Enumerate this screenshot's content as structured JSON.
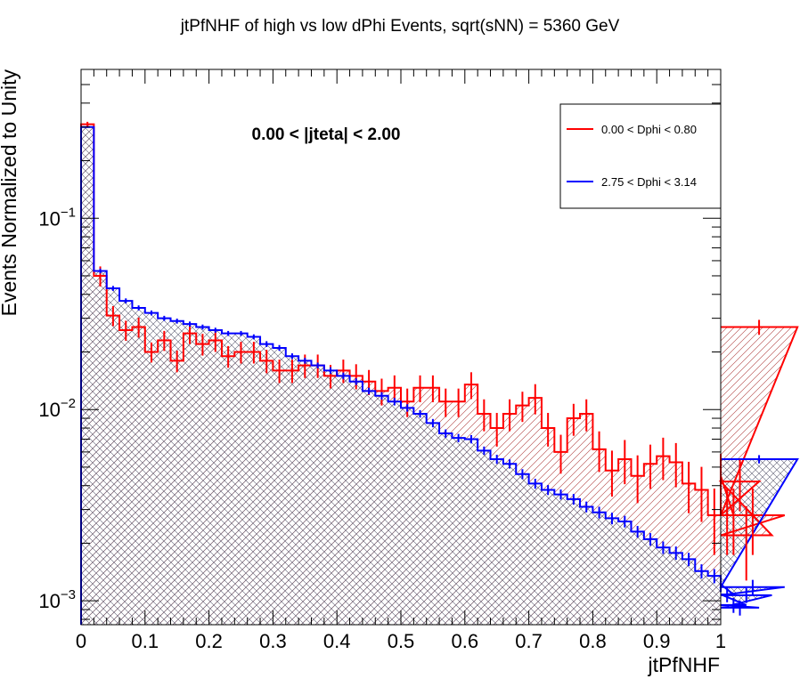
{
  "chart_data": {
    "type": "histogram",
    "title": "jtPfNHF of high vs low dPhi Events, sqrt(sNN) = 5360 GeV",
    "xlabel": "jtPfNHF",
    "ylabel": "Events Normalized to Unity",
    "annotation": "0.00 < |jteta| < 2.00",
    "xlim": [
      0,
      1
    ],
    "ylim": [
      0.00075,
      0.6
    ],
    "yscale": "log",
    "x_tick_labels": [
      "0",
      "0.1",
      "0.2",
      "0.3",
      "0.4",
      "0.5",
      "0.6",
      "0.7",
      "0.8",
      "0.9",
      "1"
    ],
    "y_tick_labels": [
      {
        "base": "10",
        "exp": "−1",
        "value": 0.1
      },
      {
        "base": "10",
        "exp": "−2",
        "value": 0.01
      },
      {
        "base": "10",
        "exp": "−3",
        "value": 0.001
      }
    ],
    "legend_position": "top-right",
    "bin_edges_start": 0,
    "bin_width": 0.02,
    "series": [
      {
        "name": "0.00 < Dphi < 0.80",
        "color": "#ff0000",
        "hatch": "diagonal",
        "values": [
          0.31,
          0.05,
          0.031,
          0.026,
          0.027,
          0.02,
          0.023,
          0.018,
          0.025,
          0.022,
          0.023,
          0.019,
          0.02,
          0.02,
          0.018,
          0.016,
          0.016,
          0.017,
          0.017,
          0.015,
          0.016,
          0.015,
          0.014,
          0.0125,
          0.013,
          0.011,
          0.013,
          0.013,
          0.011,
          0.011,
          0.0135,
          0.0095,
          0.008,
          0.0095,
          0.0105,
          0.0115,
          0.008,
          0.006,
          0.009,
          0.0095,
          0.0062,
          0.0048,
          0.0055,
          0.0045,
          0.0052,
          0.0057,
          0.0053,
          0.0041,
          0.0038,
          0.0028,
          0.0045,
          0.0028,
          0.0028,
          0.0042,
          0.0022,
          0.0028,
          0.027
        ],
        "errors_rel": [
          0.03,
          0.12,
          0.12,
          0.12,
          0.12,
          0.12,
          0.12,
          0.13,
          0.12,
          0.13,
          0.13,
          0.13,
          0.13,
          0.13,
          0.14,
          0.14,
          0.14,
          0.14,
          0.14,
          0.14,
          0.14,
          0.15,
          0.15,
          0.16,
          0.16,
          0.17,
          0.16,
          0.16,
          0.17,
          0.17,
          0.16,
          0.19,
          0.2,
          0.19,
          0.18,
          0.18,
          0.2,
          0.23,
          0.19,
          0.19,
          0.24,
          0.27,
          0.26,
          0.28,
          0.26,
          0.25,
          0.26,
          0.3,
          0.32,
          0.38,
          0.3,
          0.38,
          0.38,
          0.3,
          0.42,
          0.38,
          0.09
        ]
      },
      {
        "name": "2.75 < Dphi < 3.14",
        "color": "#0000ff",
        "hatch": "crosshatch",
        "values": [
          0.3,
          0.053,
          0.043,
          0.037,
          0.034,
          0.032,
          0.03,
          0.029,
          0.028,
          0.027,
          0.026,
          0.025,
          0.025,
          0.024,
          0.022,
          0.021,
          0.019,
          0.018,
          0.017,
          0.016,
          0.015,
          0.014,
          0.0125,
          0.0118,
          0.011,
          0.0102,
          0.0095,
          0.0085,
          0.0075,
          0.0071,
          0.007,
          0.0061,
          0.0055,
          0.0052,
          0.0046,
          0.0041,
          0.0038,
          0.0036,
          0.0034,
          0.0031,
          0.0029,
          0.0027,
          0.0026,
          0.0023,
          0.0021,
          0.0019,
          0.00178,
          0.00165,
          0.00143,
          0.00135,
          0.00122,
          0.00108,
          0.00095,
          0.00092,
          0.00107,
          0.00118,
          0.0055
        ],
        "errors_rel": [
          0.01,
          0.03,
          0.03,
          0.03,
          0.03,
          0.03,
          0.03,
          0.03,
          0.03,
          0.03,
          0.03,
          0.03,
          0.03,
          0.03,
          0.035,
          0.035,
          0.035,
          0.035,
          0.035,
          0.04,
          0.04,
          0.04,
          0.04,
          0.045,
          0.045,
          0.045,
          0.045,
          0.05,
          0.05,
          0.05,
          0.05,
          0.05,
          0.055,
          0.055,
          0.06,
          0.06,
          0.06,
          0.06,
          0.065,
          0.065,
          0.07,
          0.07,
          0.07,
          0.07,
          0.075,
          0.075,
          0.08,
          0.08,
          0.085,
          0.085,
          0.09,
          0.09,
          0.09,
          0.09,
          0.09,
          0.09,
          0.05
        ]
      }
    ]
  }
}
